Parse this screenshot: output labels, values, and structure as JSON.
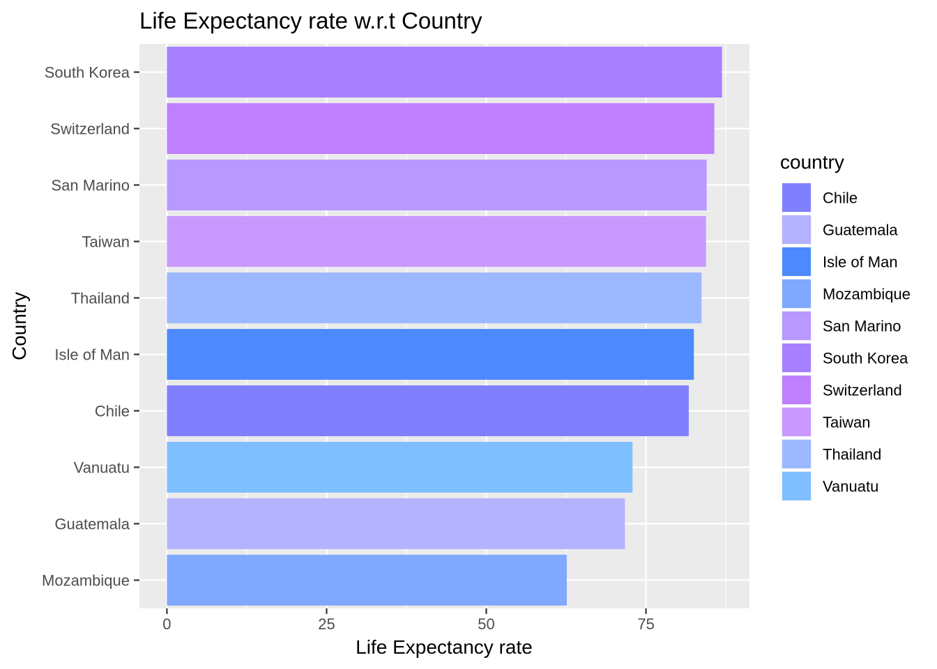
{
  "chart_data": {
    "type": "bar",
    "orientation": "horizontal",
    "title": "Life Expectancy rate w.r.t Country",
    "xlabel": "Life Expectancy rate",
    "ylabel": "Country",
    "xlim": [
      -4.3,
      91.2
    ],
    "xticks": [
      0,
      25,
      50,
      75
    ],
    "xtick_labels": [
      "0",
      "25",
      "50",
      "75"
    ],
    "grid": true,
    "categories": [
      "South Korea",
      "Switzerland",
      "San Marino",
      "Taiwan",
      "Thailand",
      "Isle of Man",
      "Chile",
      "Vanuatu",
      "Guatemala",
      "Mozambique"
    ],
    "values": [
      86.9,
      85.7,
      84.5,
      84.4,
      83.7,
      82.5,
      81.7,
      72.9,
      71.7,
      62.6
    ],
    "colors": [
      "#A680FF",
      "#BF80FF",
      "#B899FF",
      "#C999FF",
      "#9CB8FF",
      "#4D8AFF",
      "#8080FF",
      "#80BFFF",
      "#B3B3FF",
      "#80A8FF"
    ],
    "legend": {
      "title": "country",
      "position": "right",
      "entries": [
        {
          "label": "Chile",
          "color": "#8080FF"
        },
        {
          "label": "Guatemala",
          "color": "#B3B3FF"
        },
        {
          "label": "Isle of Man",
          "color": "#4D8AFF"
        },
        {
          "label": "Mozambique",
          "color": "#80A8FF"
        },
        {
          "label": "San Marino",
          "color": "#B899FF"
        },
        {
          "label": "South Korea",
          "color": "#A680FF"
        },
        {
          "label": "Switzerland",
          "color": "#BF80FF"
        },
        {
          "label": "Taiwan",
          "color": "#C999FF"
        },
        {
          "label": "Thailand",
          "color": "#9CB8FF"
        },
        {
          "label": "Vanuatu",
          "color": "#80BFFF"
        }
      ]
    }
  }
}
